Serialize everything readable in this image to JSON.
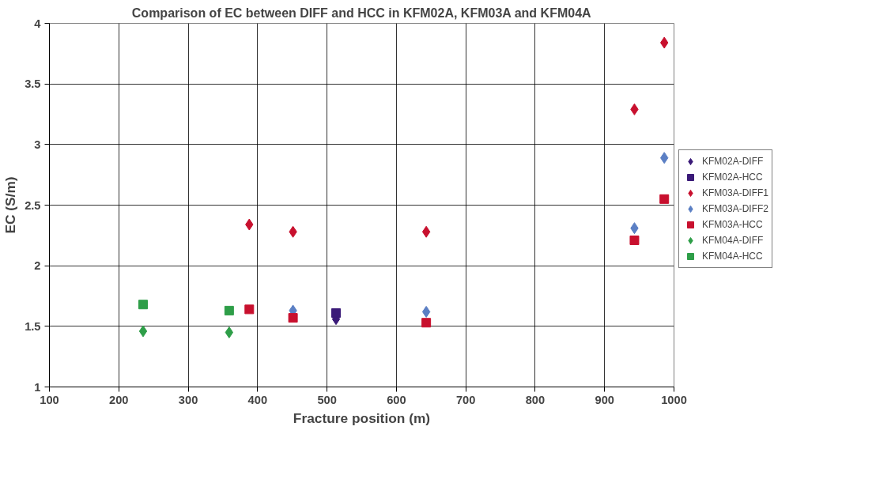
{
  "chart_data": {
    "type": "scatter",
    "title": "Comparison of EC between DIFF and HCC in KFM02A, KFM03A and KFM04A",
    "xlabel": "Fracture position (m)",
    "ylabel": "EC (S/m)",
    "xlim": [
      100,
      1000
    ],
    "xticks": [
      100,
      200,
      300,
      400,
      500,
      600,
      700,
      800,
      900,
      1000
    ],
    "ylim": [
      1,
      4
    ],
    "yticks": [
      1,
      1.5,
      2,
      2.5,
      3,
      3.5,
      4
    ],
    "grid": true,
    "legend": "right",
    "series": [
      {
        "name": "KFM02A-DIFF",
        "color": "#3a1a78",
        "marker": "diamond",
        "x": [
          513
        ],
        "values": [
          1.56
        ]
      },
      {
        "name": "KFM02A-HCC",
        "color": "#3a1a78",
        "marker": "square",
        "x": [
          513
        ],
        "values": [
          1.61
        ]
      },
      {
        "name": "KFM03A-DIFF1",
        "color": "#c8102e",
        "marker": "diamond",
        "x": [
          388,
          451,
          643,
          943,
          986
        ],
        "values": [
          2.34,
          2.28,
          2.28,
          3.29,
          3.84
        ]
      },
      {
        "name": "KFM03A-DIFF2",
        "color": "#5b7fc4",
        "marker": "diamond",
        "x": [
          451,
          643,
          943,
          986
        ],
        "values": [
          1.63,
          1.62,
          2.31,
          2.89
        ]
      },
      {
        "name": "KFM03A-HCC",
        "color": "#c8102e",
        "marker": "square",
        "x": [
          388,
          451,
          643,
          943,
          986
        ],
        "values": [
          1.64,
          1.57,
          1.53,
          2.21,
          2.55
        ]
      },
      {
        "name": "KFM04A-DIFF",
        "color": "#2e9e48",
        "marker": "diamond",
        "x": [
          235,
          359
        ],
        "values": [
          1.46,
          1.45
        ]
      },
      {
        "name": "KFM04A-HCC",
        "color": "#2e9e48",
        "marker": "square",
        "x": [
          235,
          359
        ],
        "values": [
          1.68,
          1.63
        ]
      }
    ]
  }
}
